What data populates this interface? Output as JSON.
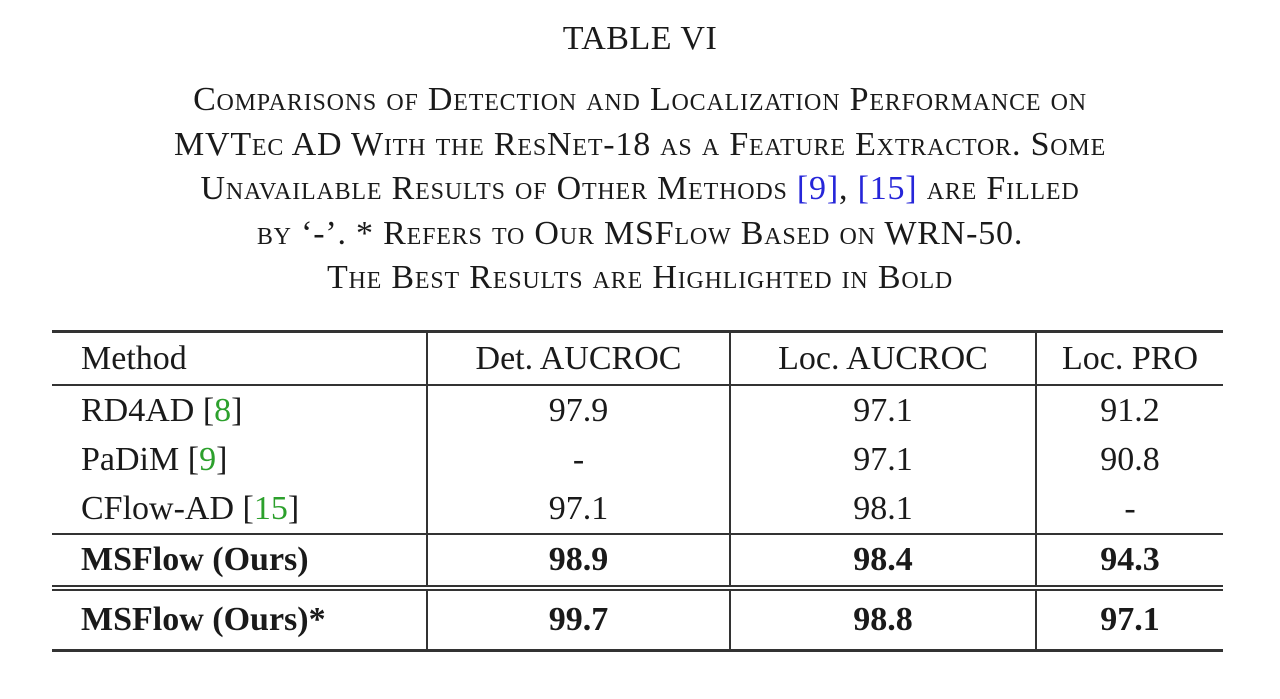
{
  "table_label": "TABLE VI",
  "caption_lines": [
    [
      {
        "t": "Comparisons of Detection and Localization Performance on"
      }
    ],
    [
      {
        "t": "MVTec AD With the ResNet-18 as a Feature Extractor. Some"
      }
    ],
    [
      {
        "t": "Unavailable Results of Other Methods "
      },
      {
        "t": "[9]",
        "cite": true
      },
      {
        "t": ", "
      },
      {
        "t": "[15]",
        "cite": true
      },
      {
        "t": " are Filled"
      }
    ],
    [
      {
        "t": "by ‘-’. * Refers to Our MSFlow Based on WRN-50."
      }
    ],
    [
      {
        "t": "The Best Results are Highlighted in Bold"
      }
    ]
  ],
  "columns": [
    "Method",
    "Det. AUCROC",
    "Loc. AUCROC",
    "Loc. PRO"
  ],
  "rows": [
    {
      "method": "RD4AD",
      "ref": "8",
      "values": [
        "97.9",
        "97.1",
        "91.2"
      ]
    },
    {
      "method": "PaDiM",
      "ref": "9",
      "values": [
        "-",
        "97.1",
        "90.8"
      ]
    },
    {
      "method": "CFlow-AD",
      "ref": "15",
      "values": [
        "97.1",
        "98.1",
        "-"
      ]
    }
  ],
  "ours": {
    "method": "MSFlow (Ours)",
    "values": [
      "98.9",
      "98.4",
      "94.3"
    ]
  },
  "ours_star": {
    "method": "MSFlow (Ours)*",
    "values": [
      "99.7",
      "98.8",
      "97.1"
    ]
  },
  "colors": {
    "citation_link": "#2626d9",
    "reference": "#2ca02c"
  }
}
